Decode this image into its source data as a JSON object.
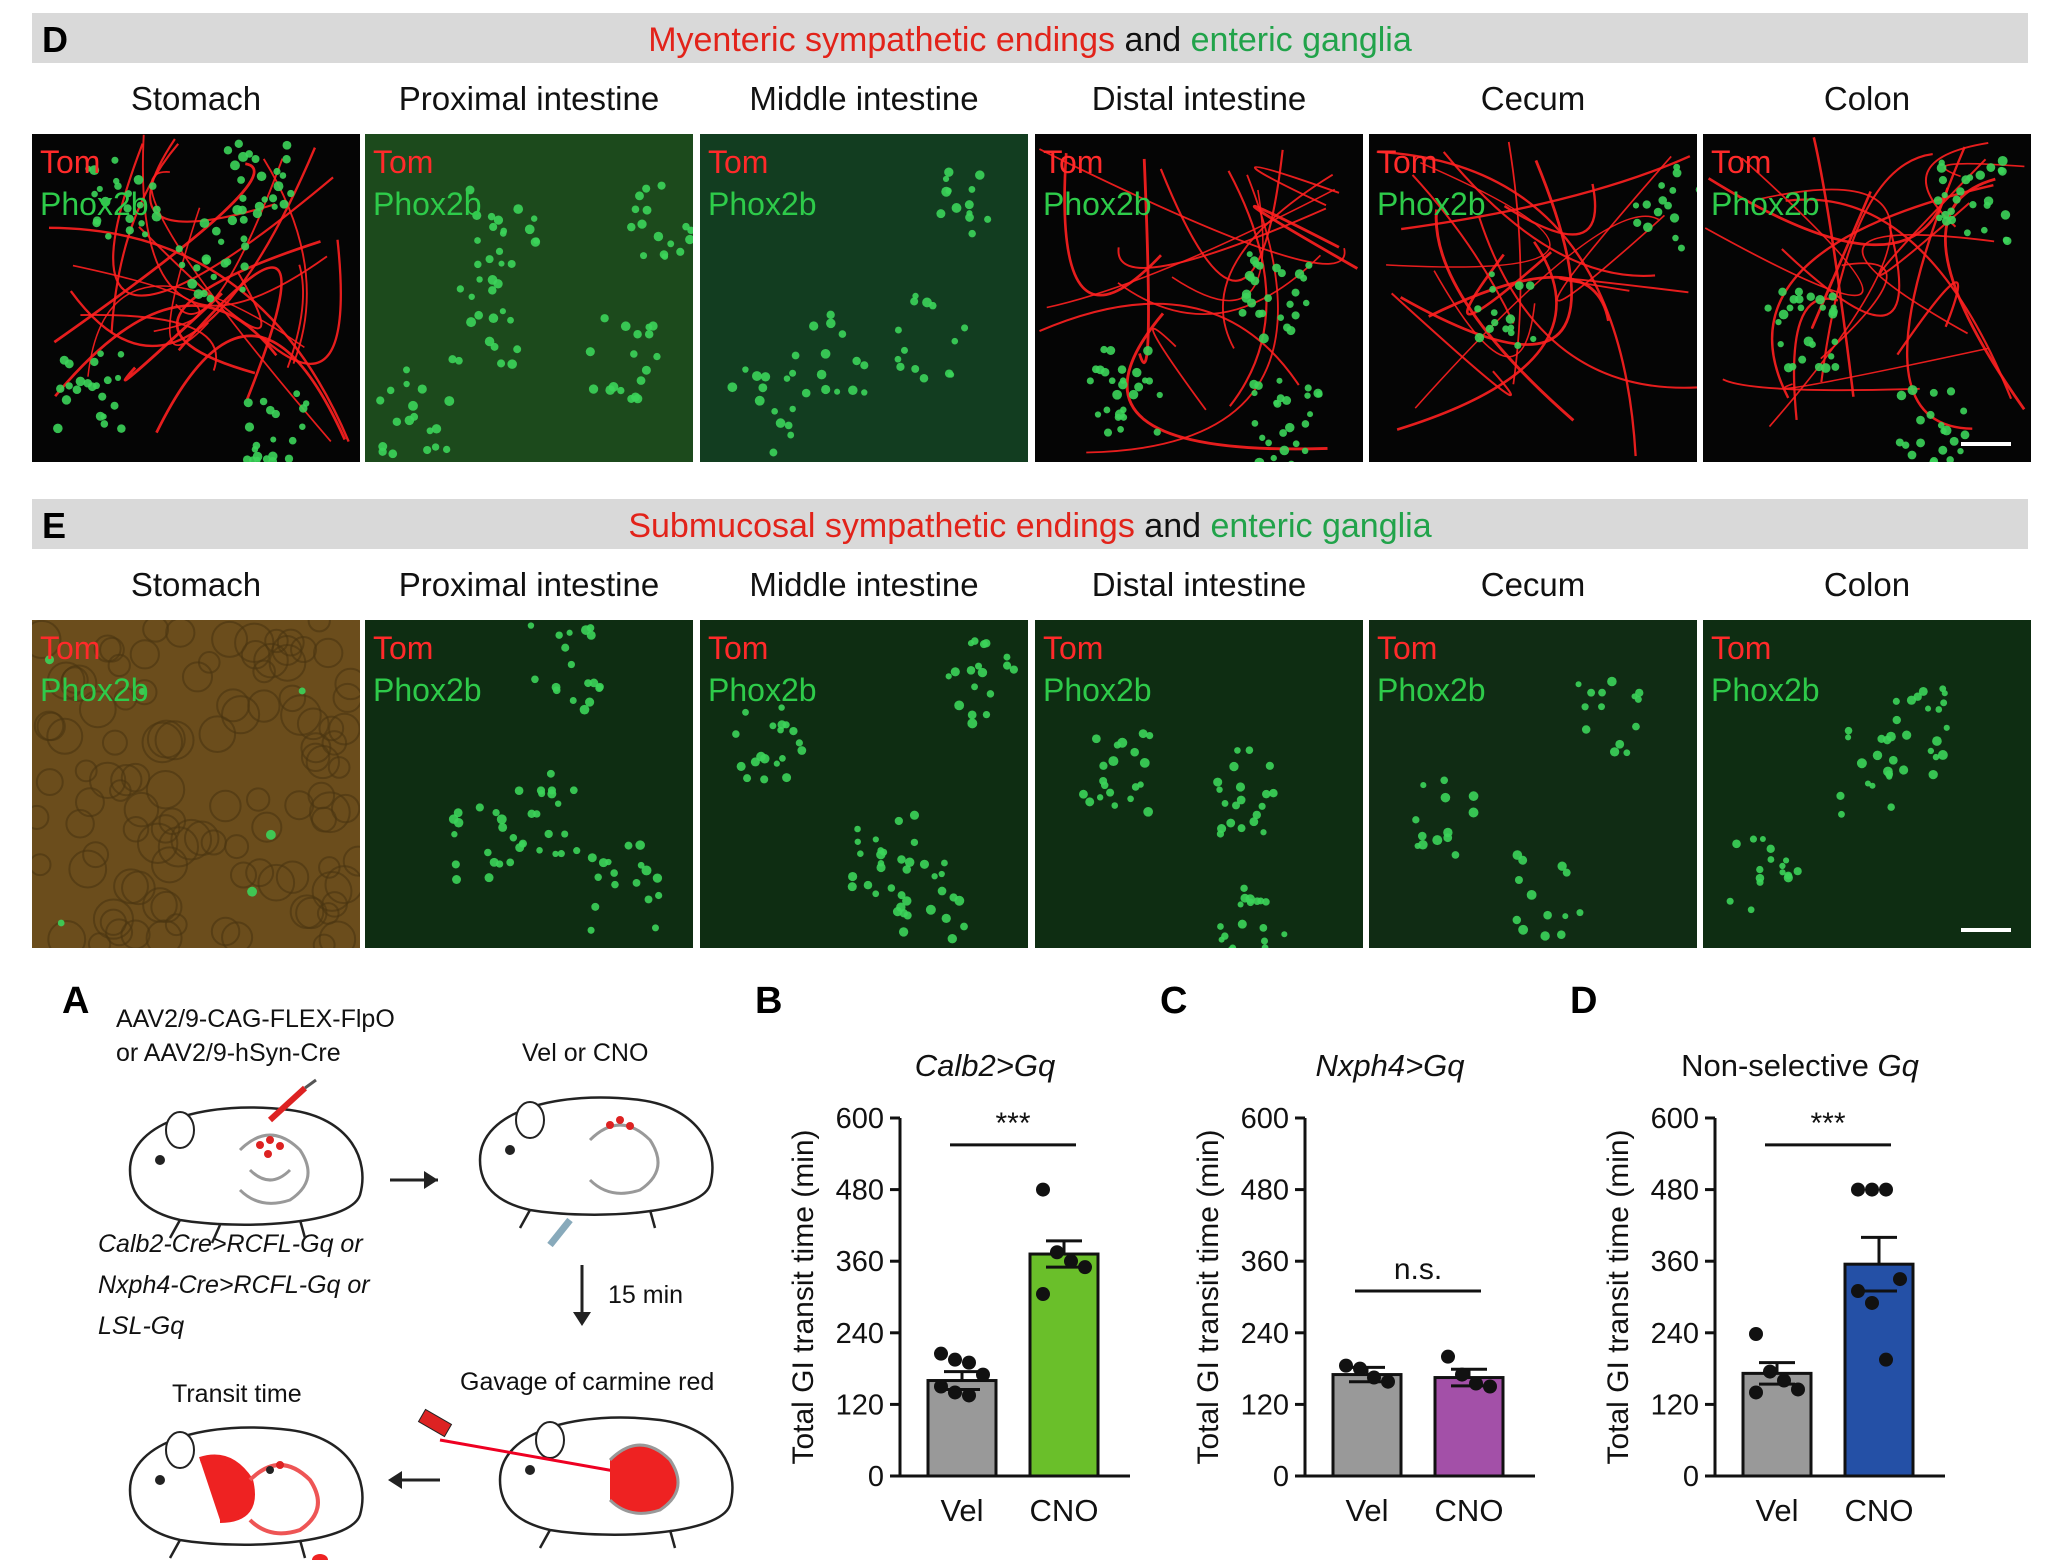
{
  "section_d": {
    "letter": "D",
    "title_red": "Myenteric sympathetic endings",
    "title_and": "and",
    "title_green": "enteric ganglia",
    "regions": [
      "Stomach",
      "Proximal intestine",
      "Middle intestine",
      "Distal intestine",
      "Cecum",
      "Colon"
    ],
    "label_red": "Tom",
    "label_green": "Phox2b"
  },
  "section_e": {
    "letter": "E",
    "title_red": "Submucosal sympathetic endings",
    "title_and": "and",
    "title_green": "enteric ganglia",
    "regions": [
      "Stomach",
      "Proximal intestine",
      "Middle intestine",
      "Distal intestine",
      "Cecum",
      "Colon"
    ],
    "label_red": "Tom",
    "label_green": "Phox2b"
  },
  "panel_a": {
    "letter": "A",
    "virus_line1": "AAV2/9-CAG-FLEX-FlpO",
    "virus_line2": "or AAV2/9-hSyn-Cre",
    "treatment": "Vel or CNO",
    "genotype_line1": "Calb2-Cre>RCFL-Gq or",
    "genotype_line2": "Nxph4-Cre>RCFL-Gq or",
    "genotype_line3": "LSL-Gq",
    "wait": "15 min",
    "gavage": "Gavage of carmine red",
    "result": "Transit time"
  },
  "chart_data": [
    {
      "letter": "B",
      "type": "bar",
      "title": "Calb2>Gq",
      "ylabel": "Total GI transit time (min)",
      "ylim": [
        0,
        600
      ],
      "yticks": [
        0,
        120,
        240,
        360,
        480,
        600
      ],
      "categories": [
        "Vel",
        "CNO"
      ],
      "values": [
        160,
        372
      ],
      "sem": [
        15,
        22
      ],
      "colors": [
        "#999999",
        "#6abf2a"
      ],
      "points": [
        [
          205,
          195,
          190,
          170,
          150,
          140,
          135
        ],
        [
          480,
          375,
          360,
          350,
          305
        ]
      ],
      "significance": "***"
    },
    {
      "letter": "C",
      "type": "bar",
      "title": "Nxph4>Gq",
      "ylabel": "Total GI transit time (min)",
      "ylim": [
        0,
        600
      ],
      "yticks": [
        0,
        120,
        240,
        360,
        480,
        600
      ],
      "categories": [
        "Vel",
        "CNO"
      ],
      "values": [
        170,
        165
      ],
      "sem": [
        12,
        14
      ],
      "colors": [
        "#999999",
        "#a350a8"
      ],
      "points": [
        [
          185,
          180,
          165,
          158
        ],
        [
          200,
          170,
          155,
          150
        ]
      ],
      "significance": "n.s."
    },
    {
      "letter": "D",
      "type": "bar",
      "title_prefix": "Non-selective",
      "title_italic": "Gq",
      "ylabel": "Total GI transit time (min)",
      "ylim": [
        0,
        600
      ],
      "yticks": [
        0,
        120,
        240,
        360,
        480,
        600
      ],
      "categories": [
        "Vel",
        "CNO"
      ],
      "values": [
        172,
        355
      ],
      "sem": [
        18,
        45
      ],
      "colors": [
        "#999999",
        "#2450a6"
      ],
      "points": [
        [
          238,
          175,
          160,
          145,
          140
        ],
        [
          480,
          480,
          480,
          330,
          310,
          290,
          195
        ]
      ],
      "significance": "***"
    }
  ]
}
